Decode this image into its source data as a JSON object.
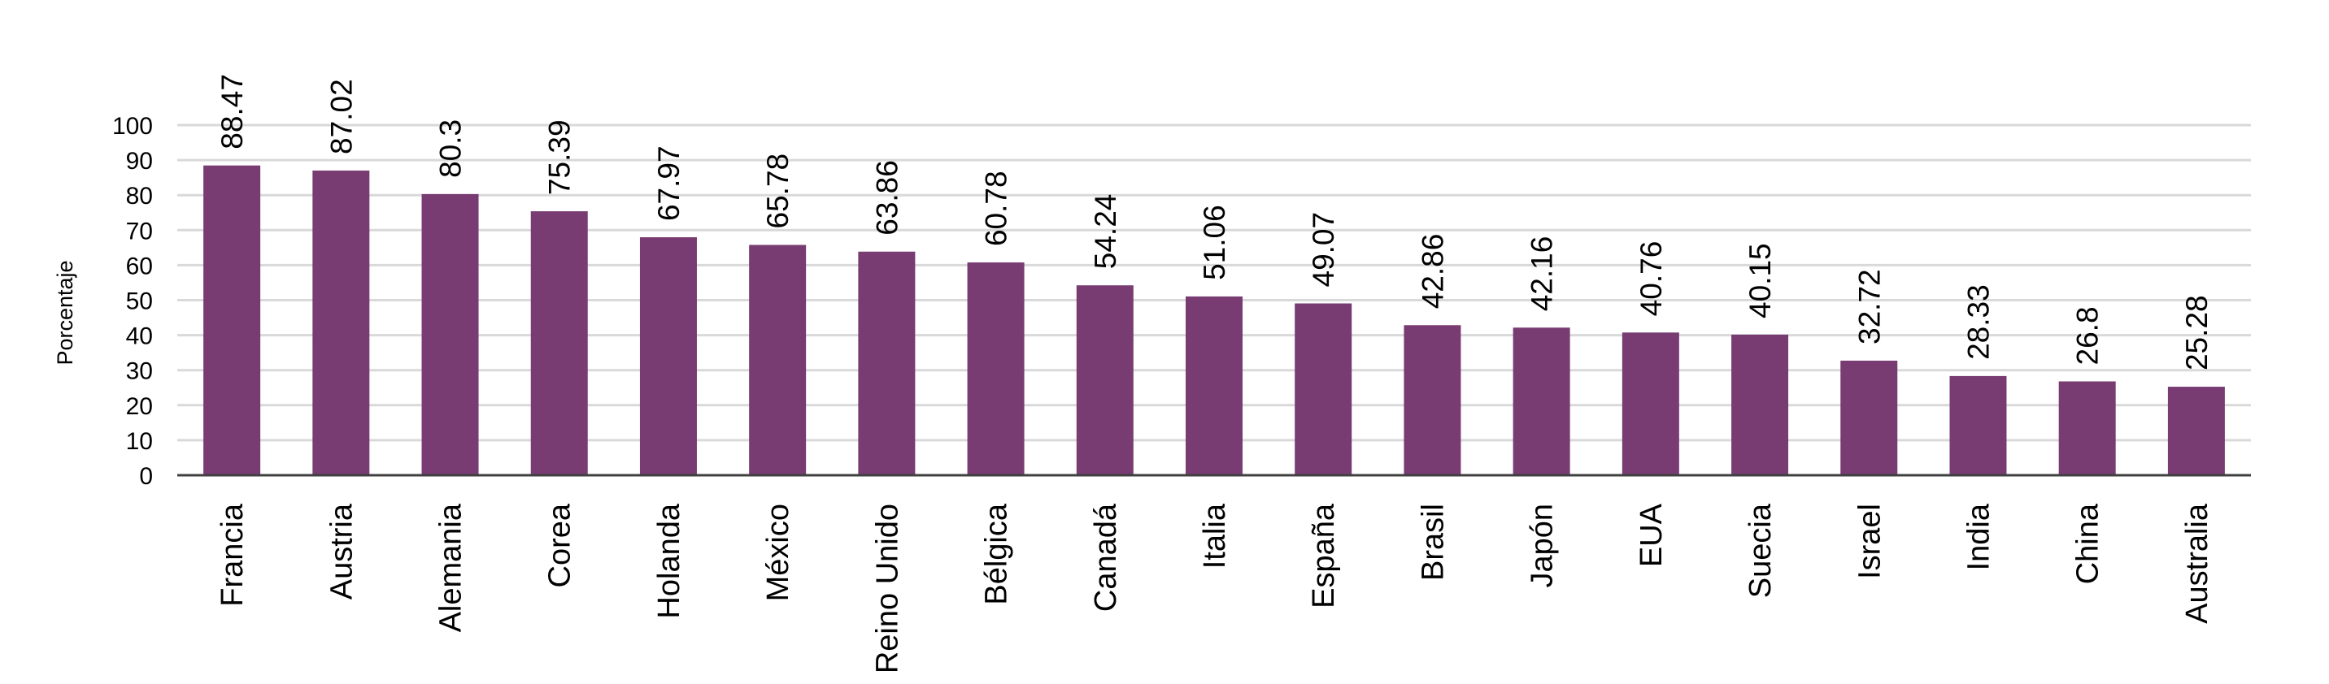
{
  "chart_data": {
    "type": "bar",
    "title": "",
    "xlabel": "",
    "ylabel": "Porcentaje",
    "ylim": [
      0,
      100
    ],
    "yticks": [
      0,
      10,
      20,
      30,
      40,
      50,
      60,
      70,
      80,
      90,
      100
    ],
    "grid": true,
    "bar_color": "#783c73",
    "categories": [
      "Francia",
      "Austria",
      "Alemania",
      "Corea",
      "Holanda",
      "México",
      "Reino Unido",
      "Bélgica",
      "Canadá",
      "Italia",
      "España",
      "Brasil",
      "Japón",
      "EUA",
      "Suecia",
      "Israel",
      "India",
      "China",
      "Australia"
    ],
    "values": [
      88.47,
      87.02,
      80.3,
      75.39,
      67.97,
      65.78,
      63.86,
      60.78,
      54.24,
      51.06,
      49.07,
      42.86,
      42.16,
      40.76,
      40.15,
      32.72,
      28.33,
      26.8,
      25.28
    ],
    "data_labels": [
      "88.47",
      "87.02",
      "80.3",
      "75.39",
      "67.97",
      "65.78",
      "63.86",
      "60.78",
      "54.24",
      "51.06",
      "49.07",
      "42.86",
      "42.16",
      "40.76",
      "40.15",
      "32.72",
      "28.33",
      "26.8",
      "25.28"
    ]
  }
}
